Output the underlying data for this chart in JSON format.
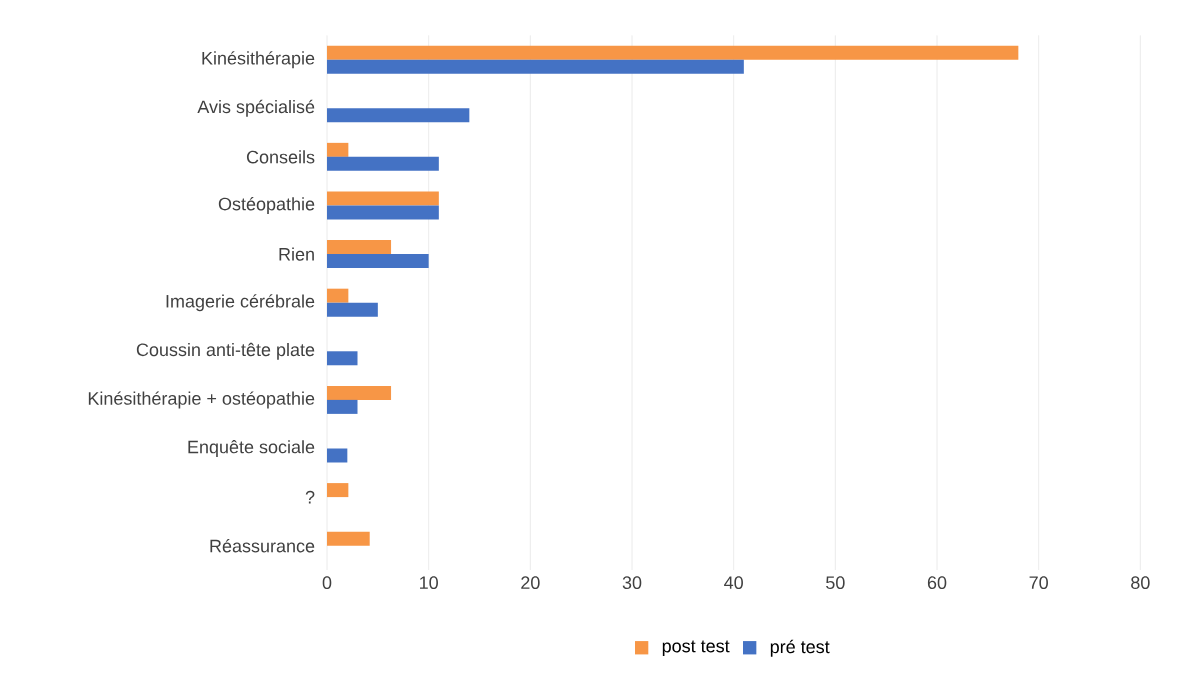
{
  "chart_data": {
    "type": "bar",
    "orientation": "horizontal",
    "categories": [
      "Kinésithérapie",
      "Avis spécialisé",
      "Conseils",
      "Ostéopathie",
      "Rien",
      "Imagerie cérébrale",
      "Coussin anti-tête plate",
      "Kinésithérapie + ostéopathie",
      "Enquête sociale",
      "?",
      "Réassurance"
    ],
    "series": [
      {
        "name": "post test",
        "color": "#f79646",
        "values": [
          68,
          null,
          2.1,
          11,
          6.3,
          2.1,
          null,
          6.3,
          null,
          2.1,
          4.2
        ]
      },
      {
        "name": "pré test",
        "color": "#4472c4",
        "values": [
          41,
          14,
          11,
          11,
          10,
          5,
          3,
          3,
          2,
          null,
          null
        ]
      }
    ],
    "xlim": [
      0,
      80
    ],
    "xticks": [
      0,
      10,
      20,
      30,
      40,
      50,
      60,
      70,
      80
    ],
    "grid": "x",
    "legend": "bottom"
  }
}
